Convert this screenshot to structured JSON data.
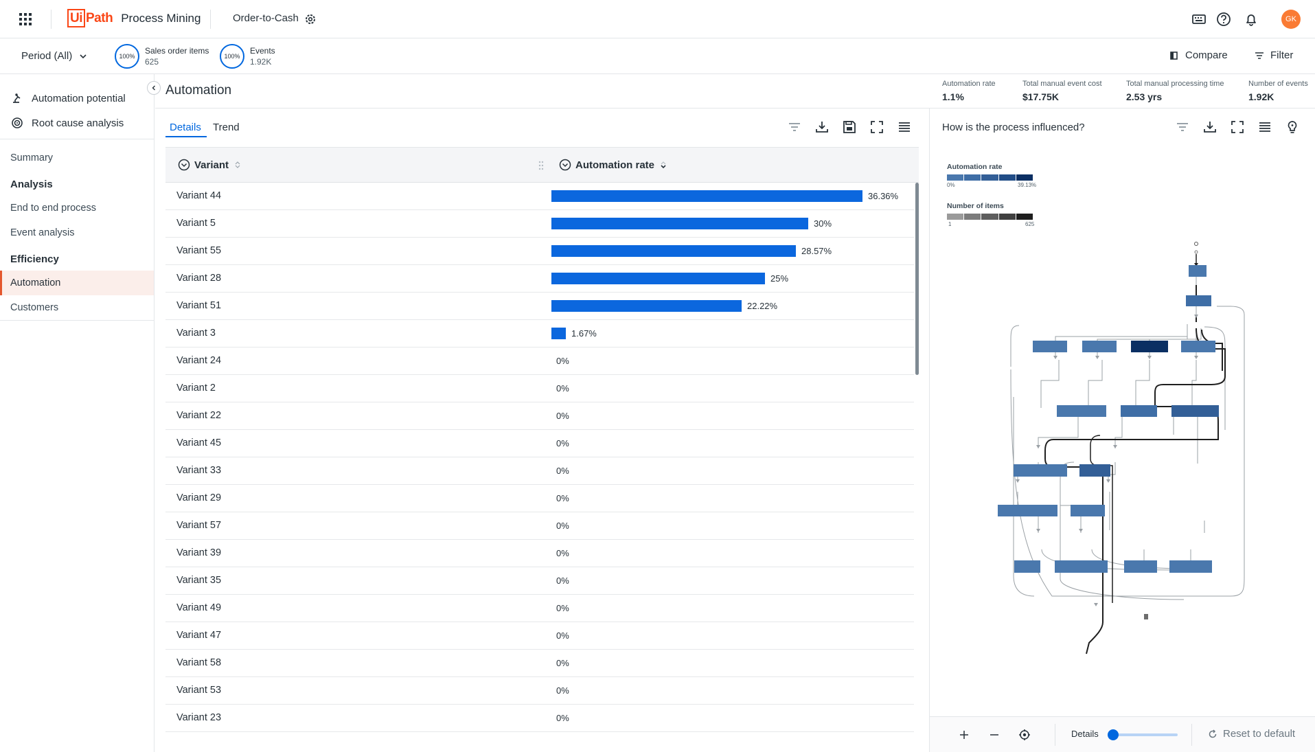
{
  "header": {
    "logo_box": "Ui",
    "logo_path": "Path",
    "product": "Process Mining",
    "app_name": "Order-to-Cash",
    "avatar": "GK"
  },
  "filterbar": {
    "period": "Period (All)",
    "kpis": [
      {
        "ring": "100%",
        "label": "Sales order items",
        "value": "625"
      },
      {
        "ring": "100%",
        "label": "Events",
        "value": "1.92K"
      }
    ],
    "compare": "Compare",
    "filter": "Filter"
  },
  "sidebar": {
    "tools": [
      "Automation potential",
      "Root cause analysis"
    ],
    "summary": "Summary",
    "analysis_head": "Analysis",
    "analysis_items": [
      "End to end process",
      "Event analysis"
    ],
    "efficiency_head": "Efficiency",
    "efficiency_items": [
      "Automation",
      "Customers"
    ]
  },
  "page": {
    "title": "Automation",
    "kpis": [
      {
        "label": "Automation rate",
        "value": "1.1%"
      },
      {
        "label": "Total manual event cost",
        "value": "$17.75K"
      },
      {
        "label": "Total manual processing time",
        "value": "2.53 yrs"
      },
      {
        "label": "Number of events",
        "value": "1.92K"
      }
    ]
  },
  "main": {
    "tabs": [
      "Details",
      "Trend"
    ],
    "columns": [
      "Variant",
      "Automation rate"
    ],
    "rows": [
      {
        "variant": "Variant 44",
        "rate": 36.36,
        "label": "36.36%"
      },
      {
        "variant": "Variant 5",
        "rate": 30,
        "label": "30%"
      },
      {
        "variant": "Variant 55",
        "rate": 28.57,
        "label": "28.57%"
      },
      {
        "variant": "Variant 28",
        "rate": 25,
        "label": "25%"
      },
      {
        "variant": "Variant 51",
        "rate": 22.22,
        "label": "22.22%"
      },
      {
        "variant": "Variant 3",
        "rate": 1.67,
        "label": "1.67%"
      },
      {
        "variant": "Variant 24",
        "rate": 0,
        "label": "0%"
      },
      {
        "variant": "Variant 2",
        "rate": 0,
        "label": "0%"
      },
      {
        "variant": "Variant 22",
        "rate": 0,
        "label": "0%"
      },
      {
        "variant": "Variant 45",
        "rate": 0,
        "label": "0%"
      },
      {
        "variant": "Variant 33",
        "rate": 0,
        "label": "0%"
      },
      {
        "variant": "Variant 29",
        "rate": 0,
        "label": "0%"
      },
      {
        "variant": "Variant 57",
        "rate": 0,
        "label": "0%"
      },
      {
        "variant": "Variant 39",
        "rate": 0,
        "label": "0%"
      },
      {
        "variant": "Variant 35",
        "rate": 0,
        "label": "0%"
      },
      {
        "variant": "Variant 49",
        "rate": 0,
        "label": "0%"
      },
      {
        "variant": "Variant 47",
        "rate": 0,
        "label": "0%"
      },
      {
        "variant": "Variant 58",
        "rate": 0,
        "label": "0%"
      },
      {
        "variant": "Variant 53",
        "rate": 0,
        "label": "0%"
      },
      {
        "variant": "Variant 23",
        "rate": 0,
        "label": "0%"
      }
    ],
    "bar_color": "#0b67de"
  },
  "right_panel": {
    "title": "How is the process influenced?",
    "legend_rate": {
      "label": "Automation rate",
      "min": "0%",
      "max": "39.13%",
      "colors": [
        "#4a78ad",
        "#3f6ea6",
        "#335f97",
        "#214d87",
        "#0b2f63"
      ]
    },
    "legend_items": {
      "label": "Number of items",
      "min": "1",
      "max": "625",
      "colors": [
        "#9a9a9a",
        "#7c7c7c",
        "#5e5e5e",
        "#404040",
        "#1e1e1e"
      ]
    },
    "footer_details": "Details",
    "footer_reset": "Reset to default"
  }
}
